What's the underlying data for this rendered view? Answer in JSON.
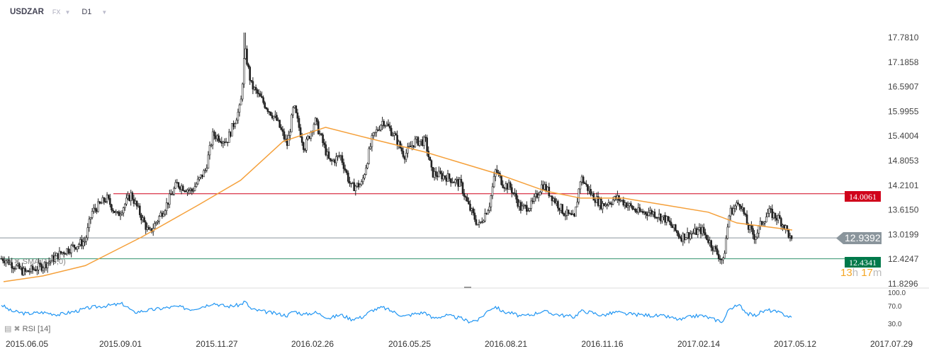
{
  "header": {
    "symbol": "USDZAR",
    "market": "FX",
    "timeframe": "D1"
  },
  "countdown": {
    "hours": "13",
    "h_unit": "h",
    "minutes": "17",
    "m_unit": "m"
  },
  "indicators": {
    "sma_label": "SMA (100,0)",
    "rsi_label": "RSI",
    "rsi_param": "[14]"
  },
  "colors": {
    "candle": "#222222",
    "sma": "#f5a03a",
    "rsi": "#2196f3",
    "resistance": "#d0021b",
    "support": "#00794a",
    "current": "#8a959c"
  },
  "chart_data": {
    "type": "candlestick",
    "title": "USDZAR D1",
    "price_axis": {
      "ticks": [
        "17.7810",
        "17.1858",
        "16.5907",
        "15.9955",
        "15.4004",
        "14.8053",
        "14.2101",
        "13.6150",
        "13.0199",
        "12.4247",
        "11.8296"
      ],
      "range": [
        11.8296,
        17.781
      ]
    },
    "date_axis": {
      "labels": [
        "2015.06.05",
        "2015.09.01",
        "2015.11.27",
        "2016.02.26",
        "2016.05.25",
        "2016.08.21",
        "2016.11.16",
        "2017.02.14",
        "2017.05.12",
        "2017.07.29"
      ]
    },
    "close_path_days_from_start": [
      [
        -22,
        12.44
      ],
      [
        -2,
        12.1
      ],
      [
        15,
        12.27
      ],
      [
        35,
        12.62
      ],
      [
        55,
        12.87
      ],
      [
        61,
        13.56
      ],
      [
        75,
        13.9
      ],
      [
        85,
        13.47
      ],
      [
        98,
        13.99
      ],
      [
        115,
        13.04
      ],
      [
        131,
        13.73
      ],
      [
        141,
        14.24
      ],
      [
        155,
        14.07
      ],
      [
        168,
        14.58
      ],
      [
        175,
        15.44
      ],
      [
        188,
        15.27
      ],
      [
        201,
        16.12
      ],
      [
        205,
        17.49
      ],
      [
        211,
        16.63
      ],
      [
        225,
        16.12
      ],
      [
        235,
        15.78
      ],
      [
        245,
        15.18
      ],
      [
        251,
        16.12
      ],
      [
        261,
        15.1
      ],
      [
        271,
        15.78
      ],
      [
        285,
        14.75
      ],
      [
        295,
        14.93
      ],
      [
        305,
        14.16
      ],
      [
        315,
        14.24
      ],
      [
        325,
        15.35
      ],
      [
        335,
        15.78
      ],
      [
        345,
        15.44
      ],
      [
        355,
        14.93
      ],
      [
        365,
        15.27
      ],
      [
        375,
        15.27
      ],
      [
        381,
        14.5
      ],
      [
        395,
        14.41
      ],
      [
        408,
        14.24
      ],
      [
        415,
        13.73
      ],
      [
        425,
        13.22
      ],
      [
        435,
        13.73
      ],
      [
        441,
        14.58
      ],
      [
        448,
        14.24
      ],
      [
        455,
        14.16
      ],
      [
        465,
        13.64
      ],
      [
        475,
        13.73
      ],
      [
        485,
        14.24
      ],
      [
        495,
        13.9
      ],
      [
        505,
        13.56
      ],
      [
        515,
        13.39
      ],
      [
        521,
        14.41
      ],
      [
        531,
        13.99
      ],
      [
        541,
        13.73
      ],
      [
        555,
        13.9
      ],
      [
        561,
        13.81
      ],
      [
        575,
        13.56
      ],
      [
        588,
        13.56
      ],
      [
        601,
        13.39
      ],
      [
        615,
        12.96
      ],
      [
        625,
        13.04
      ],
      [
        635,
        13.13
      ],
      [
        648,
        12.62
      ],
      [
        655,
        12.36
      ],
      [
        661,
        13.56
      ],
      [
        671,
        13.81
      ],
      [
        678,
        13.22
      ],
      [
        685,
        12.96
      ],
      [
        691,
        13.3
      ],
      [
        698,
        13.56
      ],
      [
        708,
        13.39
      ],
      [
        715,
        13.13
      ],
      [
        720,
        12.79
      ]
    ],
    "spike_high": 17.9,
    "sma100": [
      [
        -22,
        11.88
      ],
      [
        15,
        12.02
      ],
      [
        55,
        12.27
      ],
      [
        108,
        12.96
      ],
      [
        161,
        13.73
      ],
      [
        201,
        14.33
      ],
      [
        241,
        15.27
      ],
      [
        281,
        15.61
      ],
      [
        321,
        15.35
      ],
      [
        375,
        15.01
      ],
      [
        441,
        14.5
      ],
      [
        488,
        14.07
      ],
      [
        521,
        13.9
      ],
      [
        561,
        13.9
      ],
      [
        601,
        13.73
      ],
      [
        641,
        13.56
      ],
      [
        668,
        13.3
      ],
      [
        720,
        13.13
      ]
    ],
    "horizontal_levels": [
      {
        "name": "resistance",
        "value": "14.0061"
      },
      {
        "name": "current",
        "value": "12.9392"
      },
      {
        "name": "support",
        "value": "12.4341"
      }
    ],
    "rsi": {
      "ticks": [
        "100.0",
        "70.0",
        "30.0"
      ],
      "values": [
        [
          -24,
          72
        ],
        [
          -15,
          58
        ],
        [
          0,
          52
        ],
        [
          15,
          55
        ],
        [
          30,
          50
        ],
        [
          45,
          57
        ],
        [
          60,
          66
        ],
        [
          75,
          70
        ],
        [
          90,
          74
        ],
        [
          95,
          66
        ],
        [
          100,
          55
        ],
        [
          115,
          60
        ],
        [
          130,
          65
        ],
        [
          141,
          68
        ],
        [
          155,
          62
        ],
        [
          168,
          70
        ],
        [
          175,
          76
        ],
        [
          188,
          68
        ],
        [
          201,
          72
        ],
        [
          205,
          80
        ],
        [
          211,
          62
        ],
        [
          225,
          56
        ],
        [
          235,
          52
        ],
        [
          245,
          48
        ],
        [
          251,
          58
        ],
        [
          261,
          50
        ],
        [
          271,
          55
        ],
        [
          285,
          42
        ],
        [
          295,
          50
        ],
        [
          305,
          40
        ],
        [
          315,
          44
        ],
        [
          325,
          60
        ],
        [
          335,
          66
        ],
        [
          345,
          56
        ],
        [
          355,
          46
        ],
        [
          365,
          52
        ],
        [
          375,
          55
        ],
        [
          381,
          42
        ],
        [
          395,
          48
        ],
        [
          408,
          42
        ],
        [
          415,
          35
        ],
        [
          425,
          38
        ],
        [
          435,
          62
        ],
        [
          441,
          68
        ],
        [
          448,
          56
        ],
        [
          455,
          54
        ],
        [
          465,
          46
        ],
        [
          475,
          50
        ],
        [
          485,
          58
        ],
        [
          495,
          52
        ],
        [
          505,
          48
        ],
        [
          515,
          45
        ],
        [
          521,
          58
        ],
        [
          531,
          55
        ],
        [
          541,
          48
        ],
        [
          555,
          56
        ],
        [
          561,
          52
        ],
        [
          575,
          50
        ],
        [
          588,
          48
        ],
        [
          601,
          46
        ],
        [
          615,
          38
        ],
        [
          625,
          46
        ],
        [
          635,
          48
        ],
        [
          648,
          38
        ],
        [
          655,
          35
        ],
        [
          661,
          65
        ],
        [
          671,
          70
        ],
        [
          678,
          52
        ],
        [
          685,
          48
        ],
        [
          691,
          56
        ],
        [
          698,
          60
        ],
        [
          708,
          54
        ],
        [
          715,
          48
        ],
        [
          720,
          42
        ]
      ]
    }
  }
}
